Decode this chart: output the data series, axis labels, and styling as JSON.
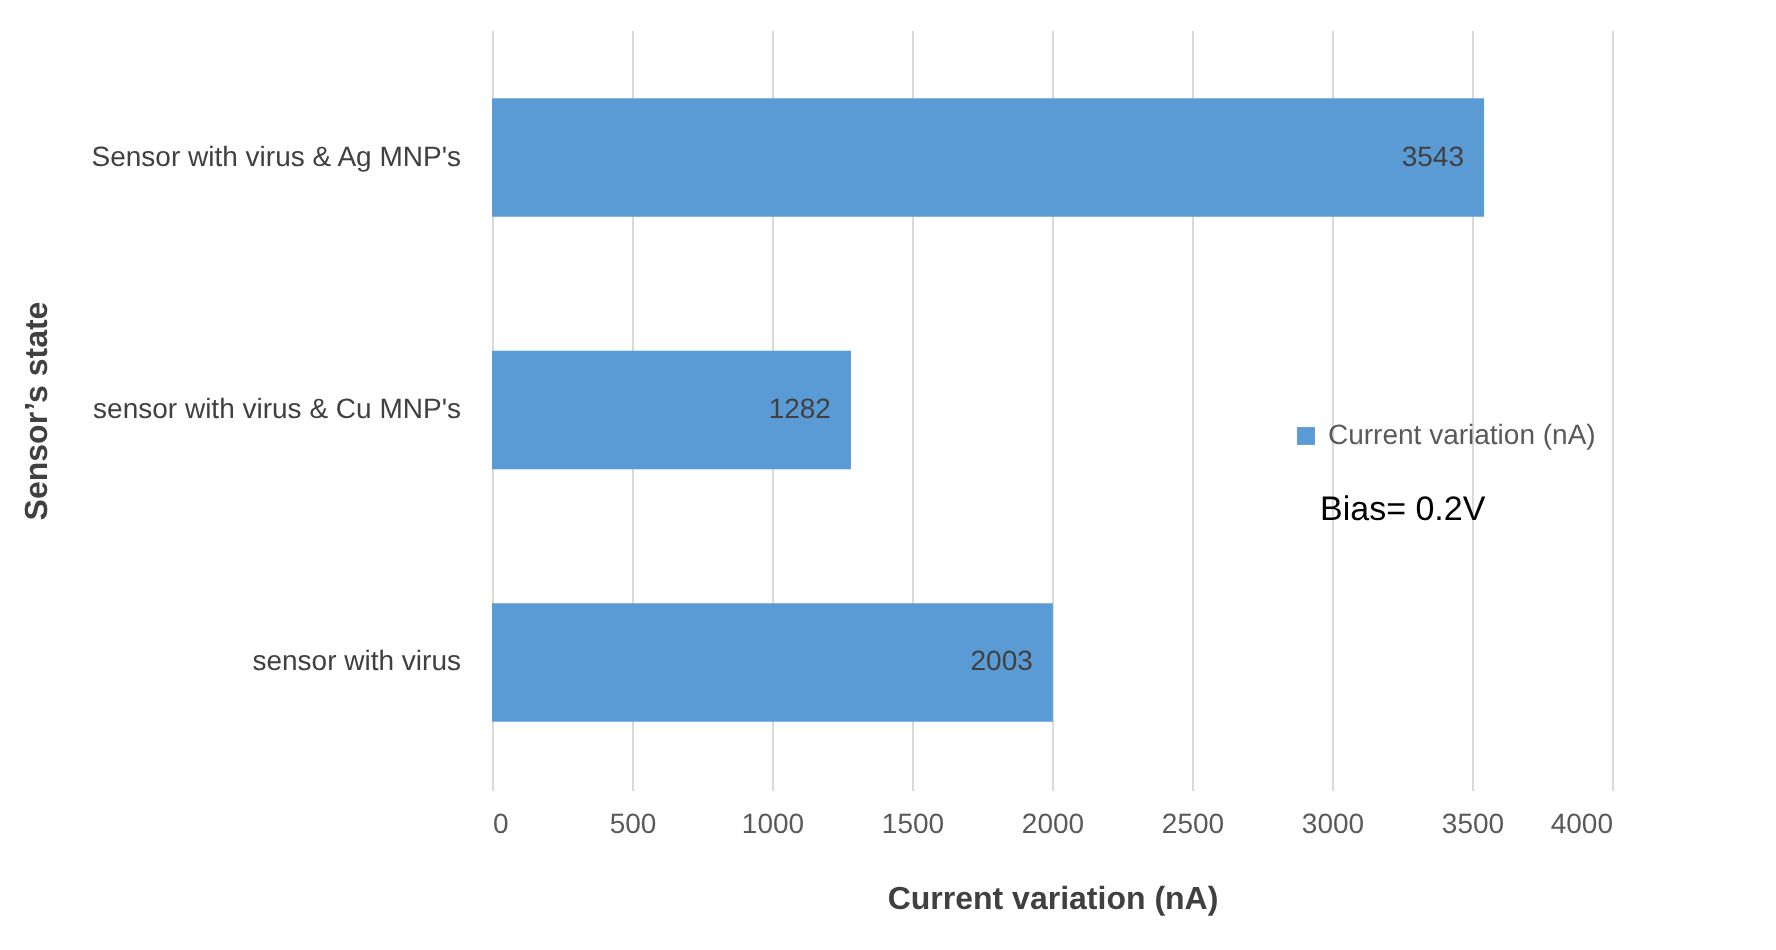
{
  "chart_data": {
    "type": "bar",
    "orientation": "horizontal",
    "categories": [
      "Sensor with virus & Ag MNP's",
      "sensor with virus & Cu MNP's",
      "sensor with virus"
    ],
    "series": [
      {
        "name": "Current variation (nA)",
        "color": "#5b9bd5",
        "values": [
          3543,
          1282,
          2003
        ]
      }
    ],
    "xlabel": "Current variation (nA)",
    "ylabel": "Sensor’s state",
    "xlim": [
      0,
      4000
    ],
    "xticks": [
      0,
      500,
      1000,
      1500,
      2000,
      2500,
      3000,
      3500,
      4000
    ],
    "grid": "x",
    "legend": "right",
    "data_labels": true,
    "annotations": [
      "Bias= 0.2V"
    ]
  }
}
